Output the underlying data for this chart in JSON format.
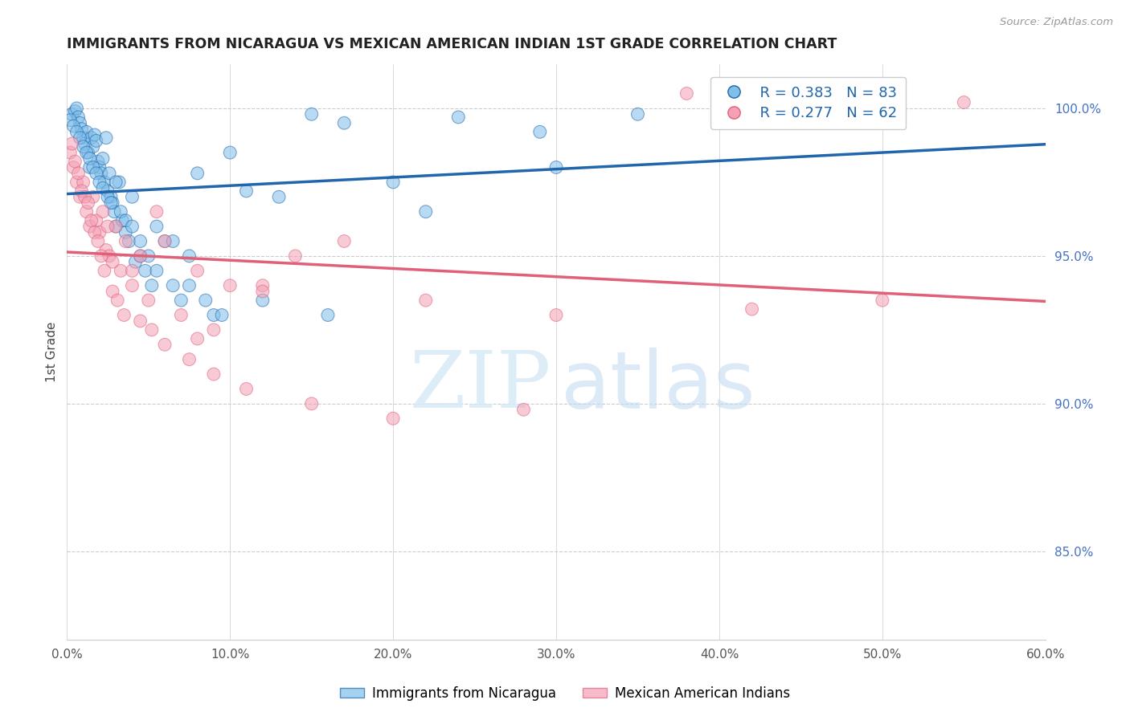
{
  "title": "IMMIGRANTS FROM NICARAGUA VS MEXICAN AMERICAN INDIAN 1ST GRADE CORRELATION CHART",
  "source": "Source: ZipAtlas.com",
  "xlabel_vals": [
    0.0,
    10.0,
    20.0,
    30.0,
    40.0,
    50.0,
    60.0
  ],
  "ylabel_vals": [
    85.0,
    90.0,
    95.0,
    100.0
  ],
  "xlim": [
    0.0,
    60.0
  ],
  "ylim": [
    82.0,
    101.5
  ],
  "ylabel_label": "1st Grade",
  "blue_face_color": "#7fbfea",
  "pink_face_color": "#f4a0b5",
  "blue_line_color": "#2166ac",
  "pink_line_color": "#e0607a",
  "right_axis_color": "#4472c4",
  "grid_color": "#cccccc",
  "background_color": "#ffffff",
  "legend_R1": "R = 0.383",
  "legend_N1": "N = 83",
  "legend_R2": "R = 0.277",
  "legend_N2": "N = 62",
  "blue_scatter_x": [
    0.3,
    0.5,
    0.6,
    0.7,
    0.8,
    0.9,
    1.0,
    1.1,
    1.2,
    1.3,
    1.4,
    1.5,
    1.6,
    1.7,
    1.8,
    1.9,
    2.0,
    2.1,
    2.2,
    2.3,
    2.4,
    2.5,
    2.6,
    2.7,
    2.8,
    2.9,
    3.0,
    3.2,
    3.4,
    3.6,
    3.8,
    4.0,
    4.2,
    4.5,
    4.8,
    5.2,
    5.5,
    6.0,
    6.5,
    7.0,
    7.5,
    8.0,
    9.0,
    10.0,
    11.0,
    13.0,
    15.0,
    17.0,
    20.0,
    24.0,
    29.0,
    35.0,
    42.0,
    0.2,
    0.4,
    0.6,
    0.8,
    1.0,
    1.2,
    1.4,
    1.6,
    1.8,
    2.0,
    2.2,
    2.5,
    2.7,
    3.0,
    3.3,
    3.6,
    4.0,
    4.5,
    5.0,
    5.5,
    6.5,
    7.5,
    8.5,
    9.5,
    12.0,
    16.0,
    22.0,
    30.0,
    40.0,
    50.0
  ],
  "blue_scatter_y": [
    99.8,
    99.9,
    100.0,
    99.7,
    99.5,
    99.3,
    99.0,
    98.8,
    99.2,
    98.5,
    98.0,
    99.0,
    98.7,
    99.1,
    98.9,
    98.2,
    98.0,
    97.8,
    98.3,
    97.5,
    99.0,
    97.2,
    97.8,
    97.0,
    96.8,
    96.5,
    96.0,
    97.5,
    96.2,
    95.8,
    95.5,
    97.0,
    94.8,
    95.0,
    94.5,
    94.0,
    96.0,
    95.5,
    94.0,
    93.5,
    95.0,
    97.8,
    93.0,
    98.5,
    97.2,
    97.0,
    99.8,
    99.5,
    97.5,
    99.7,
    99.2,
    99.8,
    100.0,
    99.6,
    99.4,
    99.2,
    99.0,
    98.7,
    98.5,
    98.3,
    98.0,
    97.8,
    97.5,
    97.3,
    97.0,
    96.8,
    97.5,
    96.5,
    96.2,
    96.0,
    95.5,
    95.0,
    94.5,
    95.5,
    94.0,
    93.5,
    93.0,
    93.5,
    93.0,
    96.5,
    98.0,
    99.5,
    100.5
  ],
  "pink_scatter_x": [
    0.2,
    0.4,
    0.6,
    0.8,
    1.0,
    1.2,
    1.4,
    1.6,
    1.8,
    2.0,
    2.2,
    2.4,
    2.6,
    2.8,
    3.0,
    3.3,
    3.6,
    4.0,
    4.5,
    5.0,
    5.5,
    6.0,
    7.0,
    8.0,
    9.0,
    10.0,
    12.0,
    14.0,
    17.0,
    22.0,
    30.0,
    42.0,
    55.0,
    0.3,
    0.5,
    0.7,
    0.9,
    1.1,
    1.3,
    1.5,
    1.7,
    1.9,
    2.1,
    2.3,
    2.5,
    2.8,
    3.1,
    3.5,
    4.0,
    4.5,
    5.2,
    6.0,
    7.5,
    9.0,
    11.0,
    15.0,
    20.0,
    28.0,
    38.0,
    50.0,
    12.0,
    8.0
  ],
  "pink_scatter_y": [
    98.5,
    98.0,
    97.5,
    97.0,
    97.5,
    96.5,
    96.0,
    97.0,
    96.2,
    95.8,
    96.5,
    95.2,
    95.0,
    94.8,
    96.0,
    94.5,
    95.5,
    94.0,
    95.0,
    93.5,
    96.5,
    95.5,
    93.0,
    94.5,
    92.5,
    94.0,
    94.0,
    95.0,
    95.5,
    93.5,
    93.0,
    93.2,
    100.2,
    98.8,
    98.2,
    97.8,
    97.2,
    97.0,
    96.8,
    96.2,
    95.8,
    95.5,
    95.0,
    94.5,
    96.0,
    93.8,
    93.5,
    93.0,
    94.5,
    92.8,
    92.5,
    92.0,
    91.5,
    91.0,
    90.5,
    90.0,
    89.5,
    89.8,
    100.5,
    93.5,
    93.8,
    92.2
  ]
}
